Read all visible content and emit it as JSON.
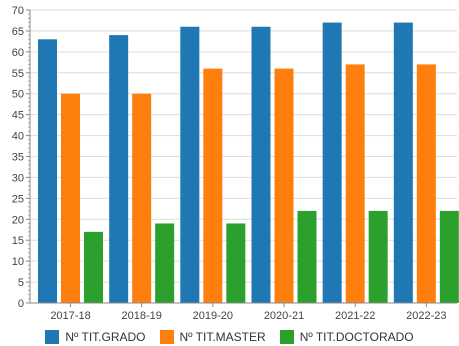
{
  "chart_data": {
    "type": "bar",
    "title": "",
    "xlabel": "",
    "ylabel": "",
    "categories": [
      "2017-18",
      "2018-19",
      "2019-20",
      "2020-21",
      "2021-22",
      "2022-23"
    ],
    "series": [
      {
        "name": "Nº TIT.GRADO",
        "color": "#1f77b4",
        "values": [
          63,
          64,
          66,
          66,
          67,
          67
        ]
      },
      {
        "name": "Nº TIT.MASTER",
        "color": "#ff7f0e",
        "values": [
          50,
          50,
          56,
          56,
          57,
          57
        ]
      },
      {
        "name": "Nº TIT.DOCTORADO",
        "color": "#2ca02c",
        "values": [
          17,
          19,
          19,
          22,
          22,
          22
        ]
      }
    ],
    "ylim": [
      0,
      70
    ],
    "yticks": [
      0,
      5,
      10,
      15,
      20,
      25,
      30,
      35,
      40,
      45,
      50,
      55,
      60,
      65,
      70
    ],
    "grid": "horizontal",
    "legend_position": "bottom"
  }
}
